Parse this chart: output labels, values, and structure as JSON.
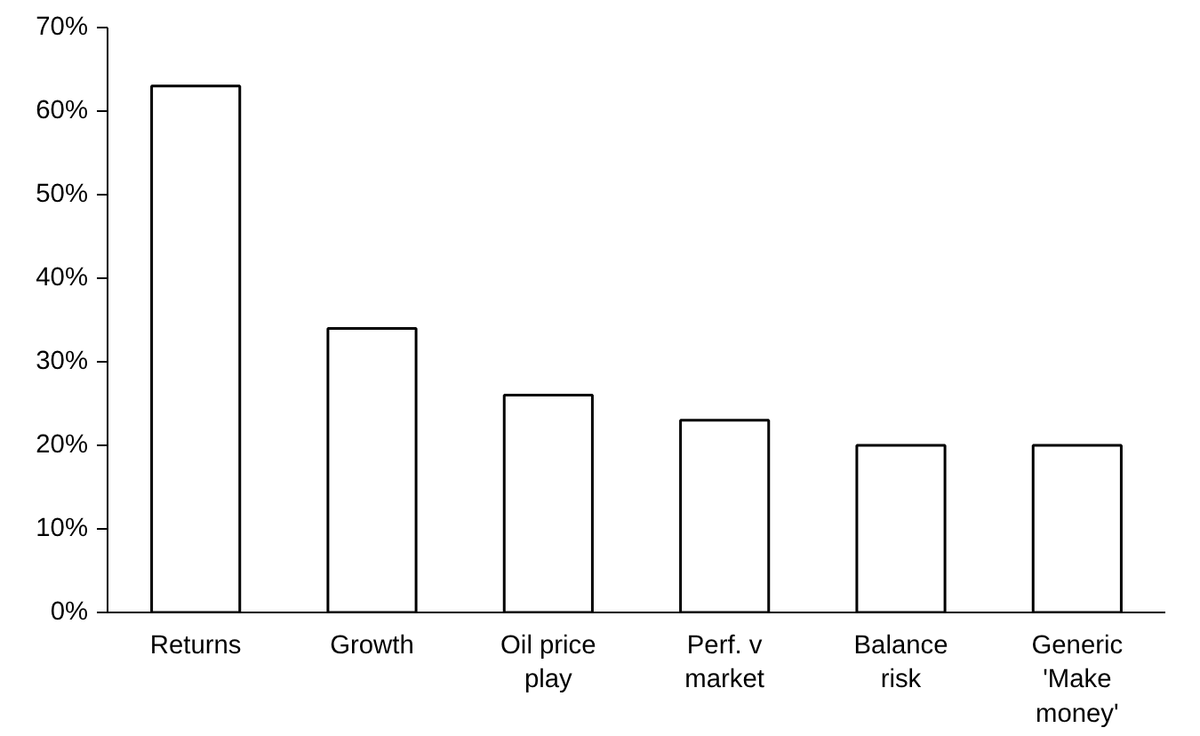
{
  "chart_data": {
    "type": "bar",
    "categories": [
      "Returns",
      "Growth",
      "Oil price play",
      "Perf. v market",
      "Balance risk",
      "Generic 'Make money'"
    ],
    "values": [
      63,
      34,
      26,
      23,
      20,
      20
    ],
    "color": "#ffffff",
    "ylim": [
      0,
      70
    ],
    "yticks": [
      {
        "value": 0,
        "label": "0%"
      },
      {
        "value": 10,
        "label": "10%"
      },
      {
        "value": 20,
        "label": "20%"
      },
      {
        "value": 30,
        "label": "30%"
      },
      {
        "value": 40,
        "label": "40%"
      },
      {
        "value": 50,
        "label": "50%"
      },
      {
        "value": 60,
        "label": "60%"
      },
      {
        "value": 70,
        "label": "70%"
      }
    ],
    "grid": false
  }
}
